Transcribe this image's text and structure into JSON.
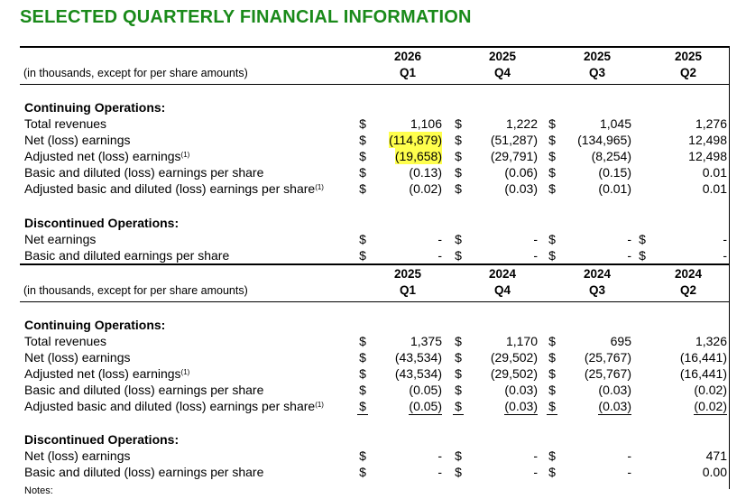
{
  "title": "SELECTED QUARTERLY FINANCIAL INFORMATION",
  "note_label": "(in thousands, except for per share amounts)",
  "footnote_label": "Notes:",
  "tables": [
    {
      "columns": [
        {
          "year": "2026",
          "quarter": "Q1"
        },
        {
          "year": "2025",
          "quarter": "Q4"
        },
        {
          "year": "2025",
          "quarter": "Q3"
        },
        {
          "year": "2025",
          "quarter": "Q2"
        }
      ],
      "continuing_heading": "Continuing Operations:",
      "continuing_rows": [
        {
          "label": "Total revenues",
          "sup": "",
          "values": [
            "1,106",
            "1,222",
            "1,045",
            "1,276"
          ]
        },
        {
          "label": "Net (loss) earnings",
          "sup": "",
          "values": [
            "(114,879)",
            "(51,287)",
            "(134,965)",
            "12,498"
          ]
        },
        {
          "label": "Adjusted net (loss) earnings",
          "sup": "(1)",
          "values": [
            "(19,658)",
            "(29,791)",
            "(8,254)",
            "12,498"
          ]
        },
        {
          "label": "Basic and diluted (loss) earnings per share",
          "sup": "",
          "values": [
            "(0.13)",
            "(0.06)",
            "(0.15)",
            "0.01"
          ]
        },
        {
          "label": "Adjusted basic and diluted (loss) earnings per share",
          "sup": "(1)",
          "values": [
            "(0.02)",
            "(0.03)",
            "(0.01)",
            "0.01"
          ]
        }
      ],
      "discontinued_heading": "Discontinued Operations:",
      "discontinued_rows": [
        {
          "label": "Net earnings",
          "values": [
            "-",
            "-",
            "-",
            "-"
          ]
        },
        {
          "label": "Basic and diluted earnings per share",
          "values": [
            "-",
            "-",
            "-",
            "-"
          ]
        }
      ]
    },
    {
      "columns": [
        {
          "year": "2025",
          "quarter": "Q1"
        },
        {
          "year": "2024",
          "quarter": "Q4"
        },
        {
          "year": "2024",
          "quarter": "Q3"
        },
        {
          "year": "2024",
          "quarter": "Q2"
        }
      ],
      "continuing_heading": "Continuing Operations:",
      "continuing_rows": [
        {
          "label": "Total revenues",
          "sup": "",
          "values": [
            "1,375",
            "1,170",
            "695",
            "1,326"
          ]
        },
        {
          "label": "Net (loss) earnings",
          "sup": "",
          "values": [
            "(43,534)",
            "(29,502)",
            "(25,767)",
            "(16,441)"
          ]
        },
        {
          "label": "Adjusted net (loss) earnings",
          "sup": "(1)",
          "values": [
            "(43,534)",
            "(29,502)",
            "(25,767)",
            "(16,441)"
          ]
        },
        {
          "label": "Basic and diluted (loss) earnings per share",
          "sup": "",
          "values": [
            "(0.05)",
            "(0.03)",
            "(0.03)",
            "(0.02)"
          ]
        },
        {
          "label": "Adjusted basic and diluted (loss) earnings per share",
          "sup": "(1)",
          "values": [
            "(0.05)",
            "(0.03)",
            "(0.03)",
            "(0.02)"
          ]
        }
      ],
      "discontinued_heading": "Discontinued Operations:",
      "discontinued_rows": [
        {
          "label": "Net (loss) earnings",
          "values": [
            "-",
            "-",
            "-",
            "471"
          ]
        },
        {
          "label": "Basic and diluted (loss) earnings per share",
          "values": [
            "-",
            "-",
            "-",
            "0.00"
          ]
        }
      ]
    }
  ],
  "currency_symbol": "$",
  "highlight_color": "#ffff4d",
  "title_color": "#1a8a1a"
}
